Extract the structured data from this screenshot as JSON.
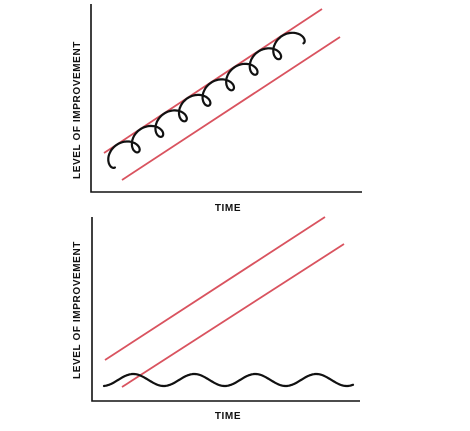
{
  "panels": [
    {
      "ylabel": "LEVEL OF IMPROVEMENT",
      "xlabel": "TIME",
      "curve": "ascending-loops"
    },
    {
      "ylabel": "LEVEL OF IMPROVEMENT",
      "xlabel": "TIME",
      "curve": "flat-wave"
    }
  ],
  "colors": {
    "axis": "#111111",
    "curve": "#111111",
    "band": "#d9535f",
    "background": "#ffffff"
  }
}
